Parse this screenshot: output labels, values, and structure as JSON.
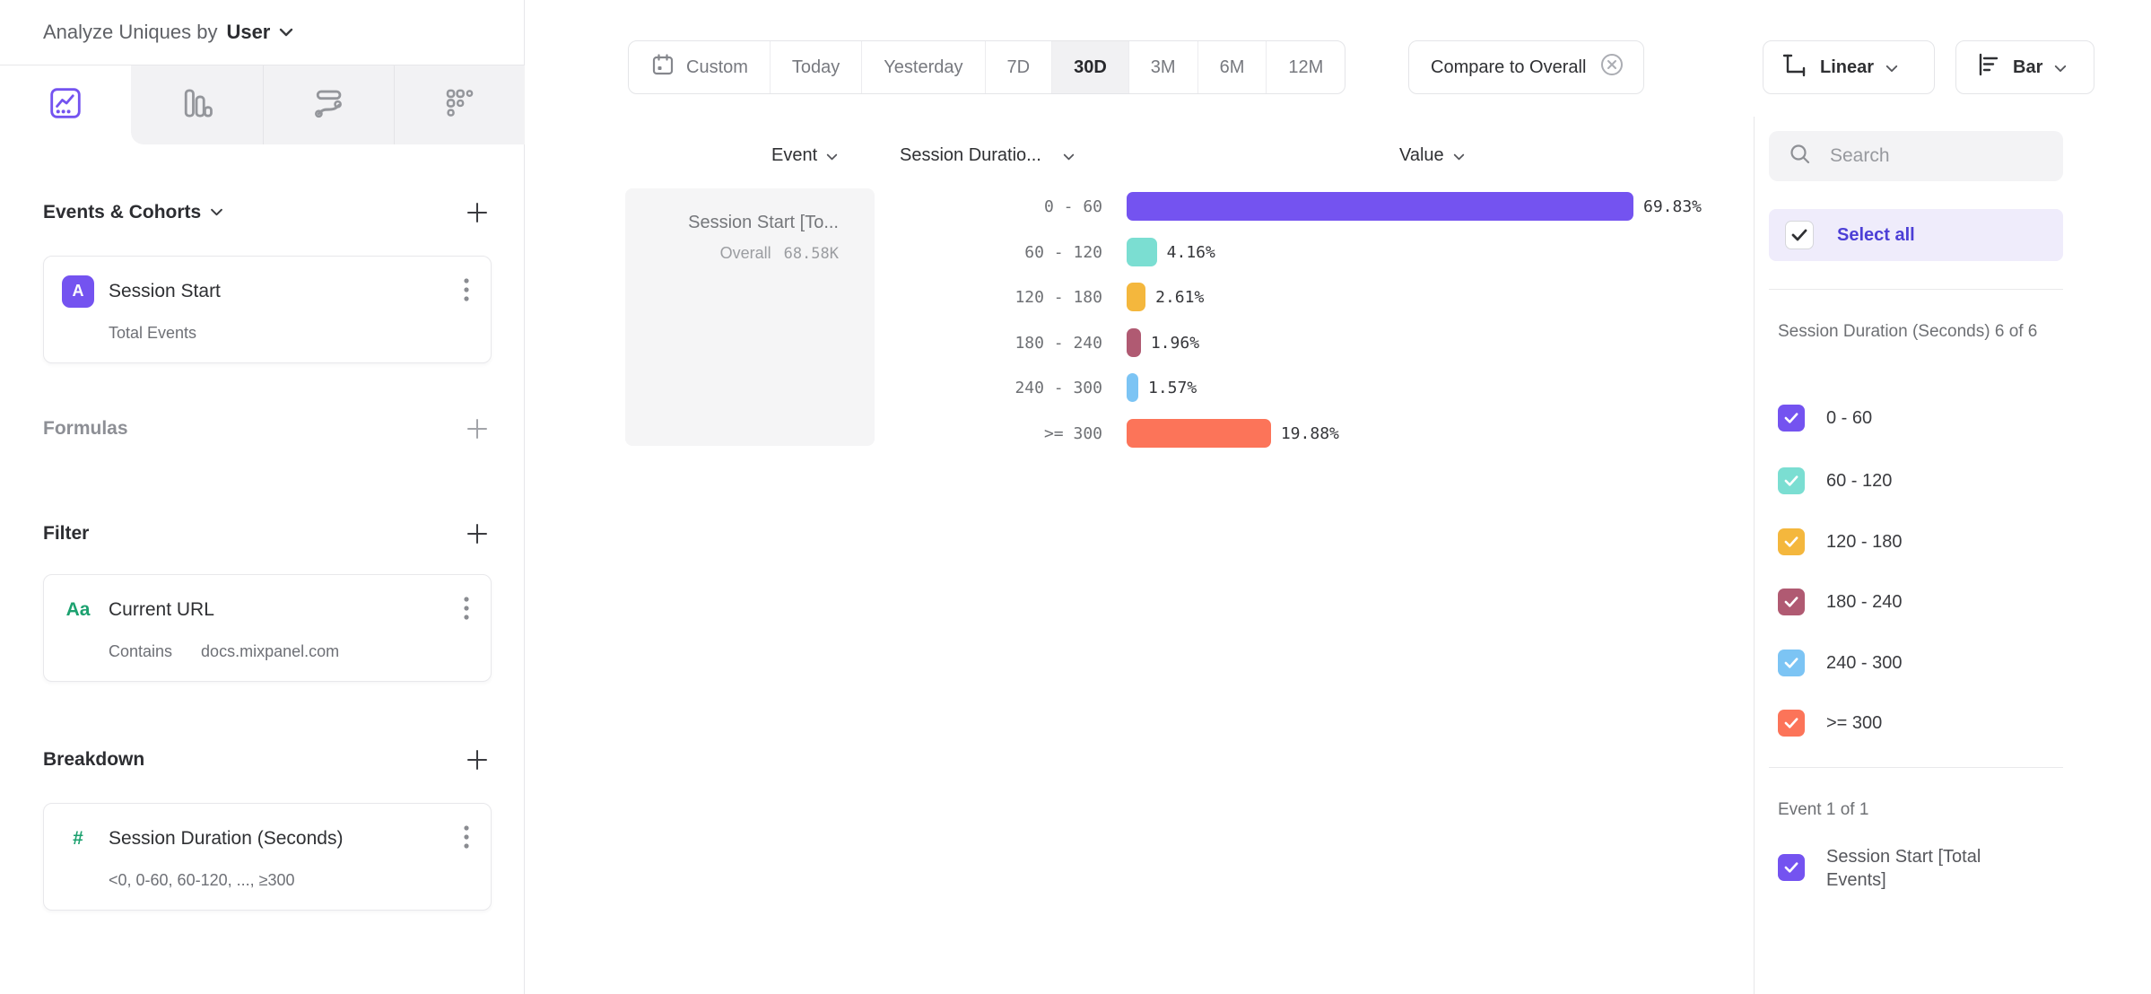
{
  "header": {
    "prefix": "Analyze Uniques by",
    "entity": "User"
  },
  "sidebar": {
    "tabs": [
      {
        "name": "insights",
        "active": true
      },
      {
        "name": "funnels",
        "active": false
      },
      {
        "name": "flows",
        "active": false
      },
      {
        "name": "retention",
        "active": false
      }
    ],
    "events_cohorts": {
      "title": "Events & Cohorts",
      "card": {
        "badge": "A",
        "title": "Session Start",
        "subtitle": "Total Events"
      }
    },
    "formulas": {
      "title": "Formulas"
    },
    "filter": {
      "title": "Filter",
      "card": {
        "badge": "Aa",
        "title": "Current URL",
        "operator": "Contains",
        "value": "docs.mixpanel.com"
      }
    },
    "breakdown": {
      "title": "Breakdown",
      "card": {
        "badge": "#",
        "title": "Session Duration (Seconds)",
        "subtitle": "<0, 0-60, 60-120, ..., ≥300"
      }
    }
  },
  "toolbar": {
    "date_ranges": [
      "Custom",
      "Today",
      "Yesterday",
      "7D",
      "30D",
      "3M",
      "6M",
      "12M"
    ],
    "active_range": "30D",
    "compare_label": "Compare to Overall",
    "scale_label": "Linear",
    "chart_type_label": "Bar"
  },
  "chart": {
    "columns": {
      "event": "Event",
      "breakdown": "Session Duratio...",
      "value": "Value"
    },
    "event_cell": {
      "title": "Session Start [To...",
      "overall_label": "Overall",
      "overall_value": "68.58K"
    }
  },
  "chart_data": {
    "type": "bar",
    "orientation": "horizontal",
    "title": "Session Start [Total Events] by Session Duration (Seconds), 30D, compared to Overall",
    "series_name": "Session Start [Total Events]",
    "overall_total": "68.58K",
    "categories": [
      "0 - 60",
      "60 - 120",
      "120 - 180",
      "180 - 240",
      "240 - 300",
      ">= 300"
    ],
    "values": [
      69.83,
      4.16,
      2.61,
      1.96,
      1.57,
      19.88
    ],
    "value_labels": [
      "69.83%",
      "4.16%",
      "2.61%",
      "1.96%",
      "1.57%",
      "19.88%"
    ],
    "colors": [
      "#7453F0",
      "#7BDED2",
      "#F4B73D",
      "#B05A72",
      "#7CC4F4",
      "#FC7459"
    ],
    "xlim": [
      0,
      69.83
    ],
    "unit": "percent",
    "grid": false,
    "legend_position": "right-panel"
  },
  "right_panel": {
    "search_placeholder": "Search",
    "select_all_label": "Select all",
    "group1_label": "Session Duration (Seconds) 6 of 6",
    "items": [
      {
        "label": "0 - 60",
        "color": "#7453F0",
        "checked": true
      },
      {
        "label": "60 - 120",
        "color": "#7BDED2",
        "checked": true
      },
      {
        "label": "120 - 180",
        "color": "#F4B73D",
        "checked": true
      },
      {
        "label": "180 - 240",
        "color": "#B05A72",
        "checked": true
      },
      {
        "label": "240 - 300",
        "color": "#7CC4F4",
        "checked": true
      },
      {
        "label": ">= 300",
        "color": "#FC7459",
        "checked": true
      }
    ],
    "group2_label": "Event 1 of 1",
    "event_item": {
      "label": "Session Start [Total Events]",
      "color": "#7453F0",
      "checked": true
    }
  }
}
